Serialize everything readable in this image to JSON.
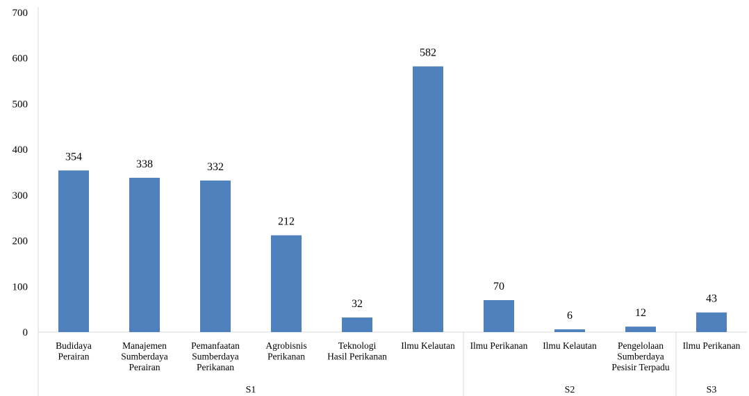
{
  "chart_data": {
    "type": "bar",
    "categories": [
      [
        "Budidaya",
        "Perairan"
      ],
      [
        "Manajemen",
        "Sumberdaya",
        "Perairan"
      ],
      [
        "Pemanfaatan",
        "Sumberdaya",
        "Perikanan"
      ],
      [
        "Agrobisnis",
        "Perikanan"
      ],
      [
        "Teknologi",
        "Hasil Perikanan"
      ],
      [
        "Ilmu Kelautan"
      ],
      [
        "Ilmu Perikanan"
      ],
      [
        "Ilmu Kelautan"
      ],
      [
        "Pengelolaan",
        "Sumberdaya",
        "Pesisir Terpadu"
      ],
      [
        "Ilmu Perikanan"
      ]
    ],
    "groups": [
      {
        "label": "S1",
        "count": 6
      },
      {
        "label": "S2",
        "count": 3
      },
      {
        "label": "S3",
        "count": 1
      }
    ],
    "values": [
      354,
      338,
      332,
      212,
      32,
      582,
      70,
      6,
      12,
      43
    ],
    "data_labels": [
      "354",
      "338",
      "332",
      "212",
      "32",
      "582",
      "70",
      "6",
      "12",
      "43"
    ],
    "ylim": [
      0,
      700
    ],
    "yticks": [
      0,
      100,
      200,
      300,
      400,
      500,
      600,
      700
    ],
    "title": "",
    "xlabel": "",
    "ylabel": "",
    "legend": "none",
    "grid": false,
    "bar_color": "#4f81bd",
    "axis_color": "#d9d9d9"
  }
}
